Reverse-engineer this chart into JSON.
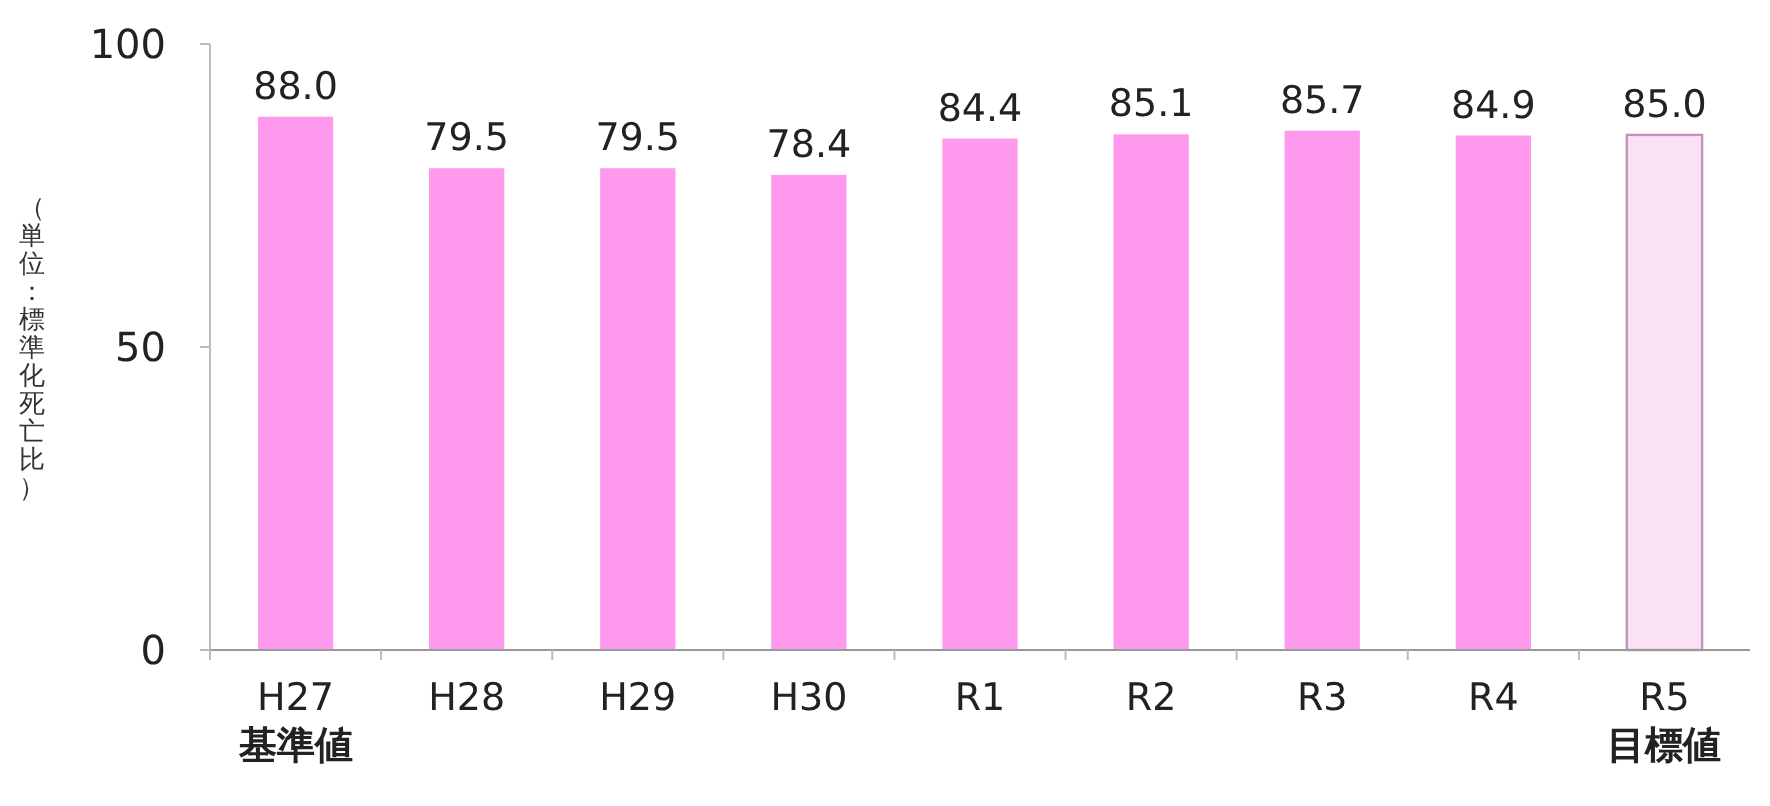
{
  "chart_data": {
    "type": "bar",
    "ylabel": "（単位：標準化死亡比）",
    "categories": [
      "H27\n基準値",
      "H28",
      "H29",
      "H30",
      "R1",
      "R2",
      "R3",
      "R4",
      "R5\n目標値"
    ],
    "values": [
      88.0,
      79.5,
      79.5,
      78.4,
      84.4,
      85.1,
      85.7,
      84.9,
      85.0
    ],
    "value_labels": [
      "88.0",
      "79.5",
      "79.5",
      "78.4",
      "84.4",
      "85.1",
      "85.7",
      "84.9",
      "85.0"
    ],
    "colors": [
      "#ff99ee",
      "#ff99ee",
      "#ff99ee",
      "#ff99ee",
      "#ff99ee",
      "#ff99ee",
      "#ff99ee",
      "#ff99ee",
      "#f8e2f4"
    ],
    "ylim": [
      0,
      100
    ],
    "yticks": [
      0,
      50,
      100
    ],
    "grid": false
  }
}
